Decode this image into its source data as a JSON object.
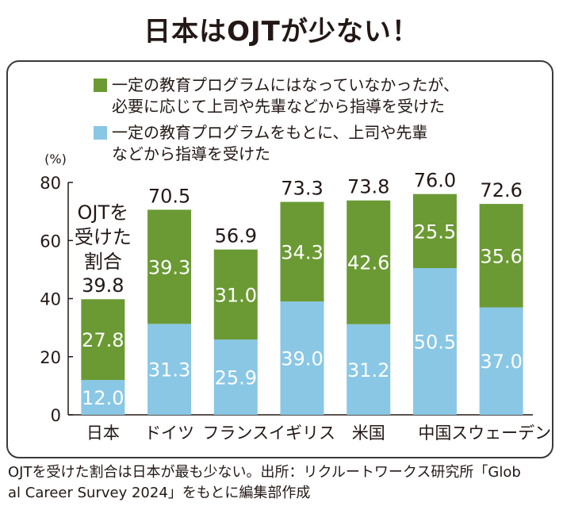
{
  "title": "日本はOJTが少ない！",
  "legend": [
    {
      "label": "一定の教育プログラムにはなっていなかったが、\n必要に応じて上司や先輩などから指導を受けた",
      "color": "#6b9a34"
    },
    {
      "label": "一定の教育プログラムをもとに、上司や先輩\nなどから指導を受けた",
      "color": "#89c7e5"
    }
  ],
  "chart_data": {
    "type": "bar",
    "stacked": true,
    "categories": [
      "日本",
      "ドイツ",
      "フランス",
      "イギリス",
      "米国",
      "中国",
      "スウェーデン"
    ],
    "series": [
      {
        "name": "一定の教育プログラムをもとに、上司や先輩などから指導を受けた",
        "color": "#89c7e5",
        "values": [
          12.0,
          31.3,
          25.9,
          39.0,
          31.2,
          50.5,
          37.0
        ],
        "labels": [
          "12.0",
          "31.3",
          "25.9",
          "39.0",
          "31.2",
          "50.5",
          "37.0"
        ]
      },
      {
        "name": "一定の教育プログラムにはなっていなかったが、必要に応じて上司や先輩などから指導を受けた",
        "color": "#6b9a34",
        "values": [
          27.8,
          39.3,
          31.0,
          34.3,
          42.6,
          25.5,
          35.6
        ],
        "labels": [
          "27.8",
          "39.3",
          "31.0",
          "34.3",
          "42.6",
          "25.5",
          "35.6"
        ]
      }
    ],
    "totals": [
      39.8,
      70.5,
      56.9,
      73.3,
      73.8,
      76.0,
      72.6
    ],
    "total_labels": [
      "39.8",
      "70.5",
      "56.9",
      "73.3",
      "73.8",
      "76.0",
      "72.6"
    ],
    "first_total_caption": [
      "OJTを",
      "受けた",
      "割合"
    ],
    "ylabel": "(%)",
    "ylim": [
      0,
      80
    ],
    "yticks": [
      "0",
      "20",
      "40",
      "60",
      "80"
    ],
    "grid": false
  },
  "footnote": "OJTを受けた割合は日本が最も少ない。出所：リクルートワークス研究所「Glob\nal Career Survey 2024」をもとに編集部作成"
}
